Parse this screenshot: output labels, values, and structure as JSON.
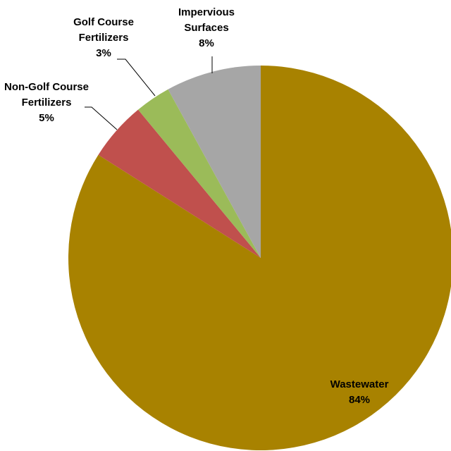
{
  "chart_data": {
    "type": "pie",
    "title": "",
    "slices": [
      {
        "label": [
          "Wastewater"
        ],
        "percent_label": "84%",
        "value": 84,
        "color": "#A88200"
      },
      {
        "label": [
          "Non-Golf Course",
          "Fertilizers"
        ],
        "percent_label": "5%",
        "value": 5,
        "color": "#C0504D"
      },
      {
        "label": [
          "Golf Course",
          "Fertilizers"
        ],
        "percent_label": "3%",
        "value": 3,
        "color": "#9BBB59"
      },
      {
        "label": [
          "Impervious",
          "Surfaces"
        ],
        "percent_label": "8%",
        "value": 8,
        "color": "#A6A6A6"
      }
    ],
    "start_angle_deg": 0,
    "direction": "clockwise",
    "legend": "none",
    "data_labels": "outside with leader lines; inside for largest slice"
  }
}
